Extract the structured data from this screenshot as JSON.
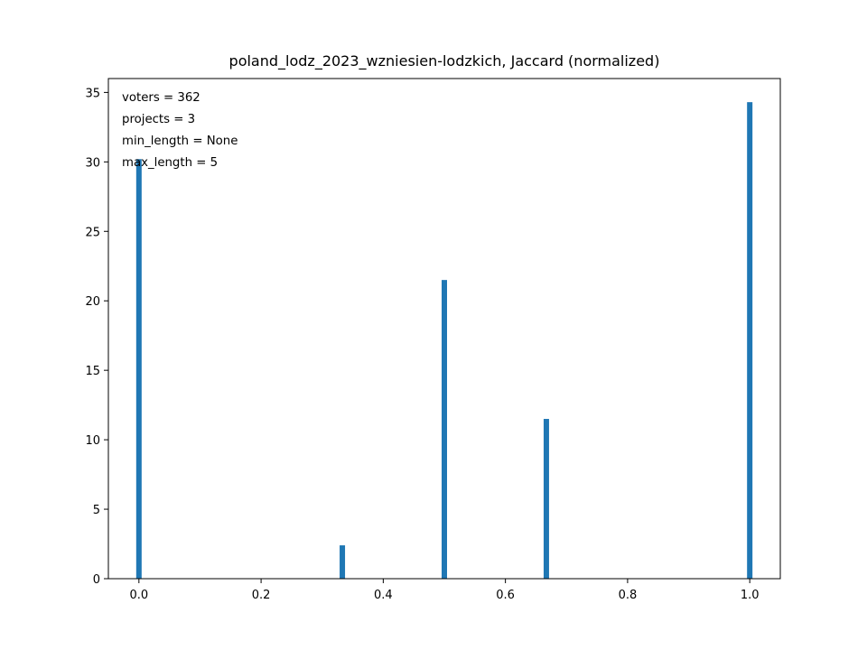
{
  "chart_data": {
    "type": "bar",
    "title": "poland_lodz_2023_wzniesien-lodzkich, Jaccard (normalized)",
    "xlabel": "",
    "ylabel": "",
    "xlim": [
      -0.05,
      1.05
    ],
    "ylim": [
      0,
      36
    ],
    "xticks": [
      "0.0",
      "0.2",
      "0.4",
      "0.6",
      "0.8",
      "1.0"
    ],
    "yticks": [
      "0",
      "5",
      "10",
      "15",
      "20",
      "25",
      "30",
      "35"
    ],
    "grid": false,
    "bar_color": "#1f77b4",
    "bars": [
      {
        "x": 0.0,
        "value": 30.2
      },
      {
        "x": 0.333,
        "value": 2.4
      },
      {
        "x": 0.5,
        "value": 21.5
      },
      {
        "x": 0.667,
        "value": 11.5
      },
      {
        "x": 1.0,
        "value": 34.3
      }
    ],
    "annotations": [
      "voters = 362",
      "projects = 3",
      "min_length = None",
      "max_length = 5"
    ]
  }
}
